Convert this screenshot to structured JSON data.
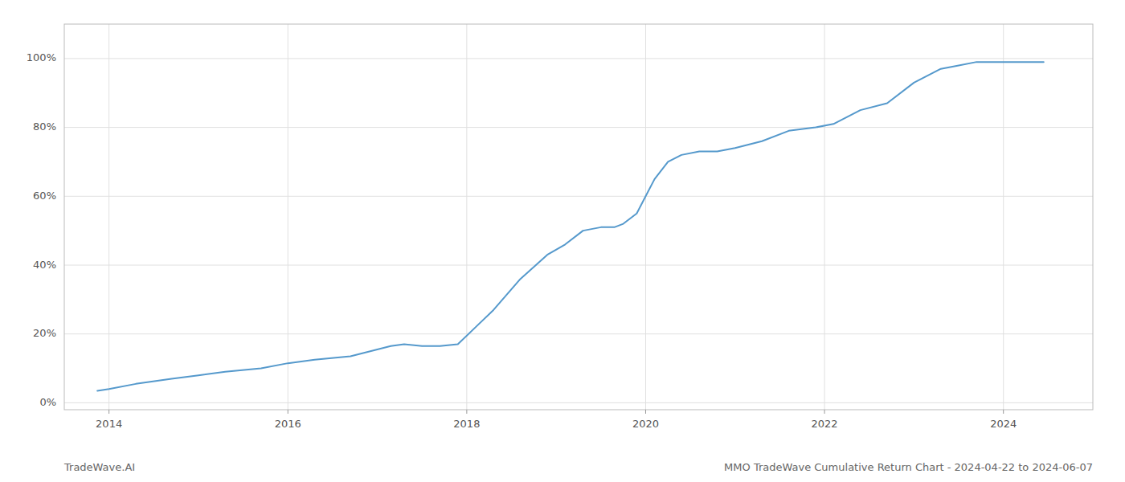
{
  "chart_data": {
    "type": "line",
    "title": "MMO TradeWave Cumulative Return Chart - 2024-04-22 to 2024-06-07",
    "annotations": [
      "TradeWave.AI"
    ],
    "color": "#5599cc",
    "grid": true,
    "x": [
      2013.87,
      2014.0,
      2014.3,
      2014.7,
      2015.0,
      2015.3,
      2015.7,
      2016.0,
      2016.3,
      2016.7,
      2017.0,
      2017.15,
      2017.3,
      2017.5,
      2017.7,
      2017.9,
      2018.1,
      2018.3,
      2018.6,
      2018.9,
      2019.1,
      2019.3,
      2019.5,
      2019.65,
      2019.75,
      2019.9,
      2020.0,
      2020.1,
      2020.25,
      2020.4,
      2020.6,
      2020.8,
      2021.0,
      2021.3,
      2021.6,
      2021.9,
      2022.1,
      2022.4,
      2022.7,
      2023.0,
      2023.3,
      2023.5,
      2023.7,
      2024.0,
      2024.3,
      2024.45
    ],
    "values": [
      0.035,
      0.04,
      0.055,
      0.07,
      0.08,
      0.09,
      0.1,
      0.115,
      0.125,
      0.135,
      0.155,
      0.165,
      0.17,
      0.165,
      0.165,
      0.17,
      0.22,
      0.27,
      0.36,
      0.43,
      0.46,
      0.5,
      0.51,
      0.51,
      0.52,
      0.55,
      0.6,
      0.65,
      0.7,
      0.72,
      0.73,
      0.73,
      0.74,
      0.76,
      0.79,
      0.8,
      0.81,
      0.85,
      0.87,
      0.93,
      0.97,
      0.98,
      0.99,
      0.99,
      0.99,
      0.99
    ],
    "xlim": [
      2013.5,
      2025.0
    ],
    "ylim": [
      -0.02,
      1.1
    ],
    "xticks": [
      2014,
      2016,
      2018,
      2020,
      2022,
      2024
    ],
    "yticks": [
      {
        "value": 0.0,
        "label": "0%"
      },
      {
        "value": 0.2,
        "label": "20%"
      },
      {
        "value": 0.4,
        "label": "40%"
      },
      {
        "value": 0.6,
        "label": "60%"
      },
      {
        "value": 0.8,
        "label": "80%"
      },
      {
        "value": 1.0,
        "label": "100%"
      }
    ]
  }
}
